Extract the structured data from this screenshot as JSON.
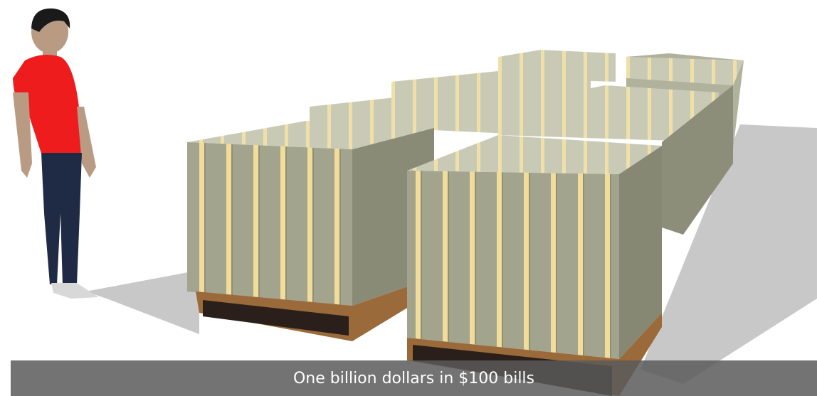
{
  "caption": "One billion dollars in $100 bills"
}
